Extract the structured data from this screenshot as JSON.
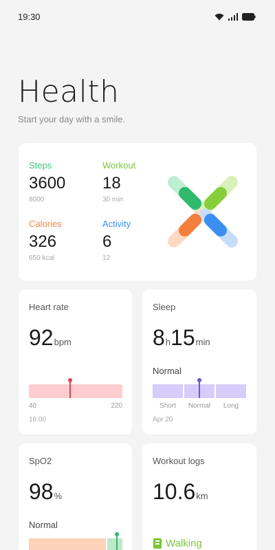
{
  "status_bar": {
    "time": "19:30",
    "icons": [
      "wifi-icon",
      "signal-icon",
      "battery-icon"
    ]
  },
  "header": {
    "title": "Health",
    "subtitle": "Start your day with a smile."
  },
  "summary": {
    "steps": {
      "label": "Steps",
      "value": "3600",
      "goal": "8000",
      "color": "#3ec27c"
    },
    "workout": {
      "label": "Workout",
      "value": "18",
      "goal": "30 min",
      "color": "#7bc63a"
    },
    "calories": {
      "label": "Calories",
      "value": "326",
      "goal": "650 kcal",
      "color": "#f0874a"
    },
    "activity": {
      "label": "Activity",
      "value": "6",
      "goal": "12",
      "color": "#3b8ff0"
    },
    "rings_icon": "activity-rings-icon"
  },
  "heart_rate": {
    "title": "Heart rate",
    "value": "92",
    "unit": "bpm",
    "range_min": "40",
    "range_max": "220",
    "date": "18:00",
    "marker_color": "#d9434f"
  },
  "sleep": {
    "title": "Sleep",
    "hours": "8",
    "hours_unit": "h",
    "minutes": "15",
    "minutes_unit": "min",
    "status": "Normal",
    "segments": [
      "Short",
      "Normal",
      "Long"
    ],
    "date": "Apr 20",
    "marker_color": "#6a52d8"
  },
  "spo2": {
    "title": "SpO2",
    "value": "98",
    "unit": "%",
    "status": "Normal"
  },
  "workout_logs": {
    "title": "Workout logs",
    "value": "10.6",
    "unit": "km",
    "activity": "Walking",
    "activity_icon": "walking-icon"
  }
}
